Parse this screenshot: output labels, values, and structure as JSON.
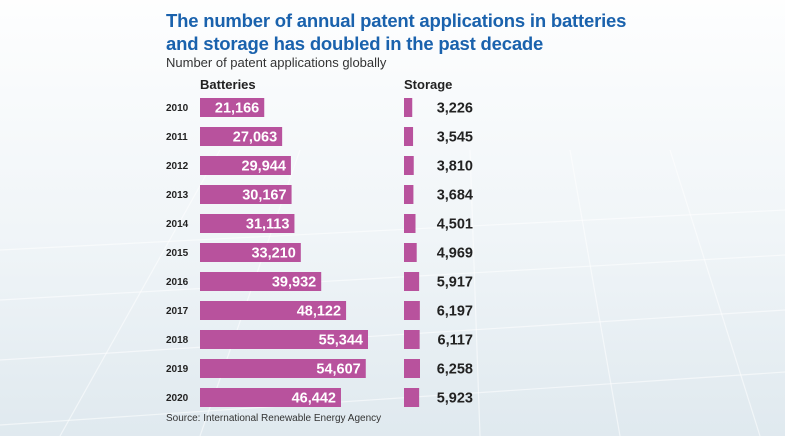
{
  "header": {
    "title_line1": "The number of annual patent applications in batteries",
    "title_line2": "and storage has doubled in the past decade",
    "subtitle": "Number of patent applications globally"
  },
  "footer": {
    "source": "Source: International Renewable Energy Agency"
  },
  "colors": {
    "bar": "#b8529d",
    "title": "#1a62ad"
  },
  "chart_data": {
    "type": "bar",
    "orientation": "horizontal",
    "title": "The number of annual patent applications in batteries and storage has doubled in the past decade",
    "subtitle": "Number of patent applications globally",
    "categories": [
      "2010",
      "2011",
      "2012",
      "2013",
      "2014",
      "2015",
      "2016",
      "2017",
      "2018",
      "2019",
      "2020"
    ],
    "series": [
      {
        "name": "Batteries",
        "values": [
          21166,
          27063,
          29944,
          30167,
          31113,
          33210,
          39932,
          48122,
          55344,
          54607,
          46442
        ],
        "labels": [
          "21,166",
          "27,063",
          "29,944",
          "30,167",
          "31,113",
          "33,210",
          "39,932",
          "48,122",
          "55,344",
          "54,607",
          "46,442"
        ]
      },
      {
        "name": "Storage",
        "values": [
          3226,
          3545,
          3810,
          3684,
          4501,
          4969,
          5917,
          6197,
          6117,
          6258,
          5923
        ],
        "labels": [
          "3,226",
          "3,545",
          "3,810",
          "3,684",
          "4,501",
          "4,969",
          "5,917",
          "6,197",
          "6,117",
          "6,258",
          "5,923"
        ]
      }
    ],
    "source": "Source: International Renewable Energy Agency",
    "legend": "column-headers"
  }
}
